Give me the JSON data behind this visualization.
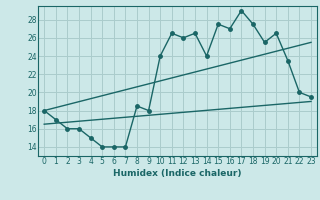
{
  "xlabel": "Humidex (Indice chaleur)",
  "bg_color": "#cce8e8",
  "grid_color": "#aacccc",
  "line_color": "#1a6666",
  "xmin": -0.5,
  "xmax": 23.5,
  "ymin": 13,
  "ymax": 29.5,
  "yticks": [
    14,
    16,
    18,
    20,
    22,
    24,
    26,
    28
  ],
  "xticks": [
    0,
    1,
    2,
    3,
    4,
    5,
    6,
    7,
    8,
    9,
    10,
    11,
    12,
    13,
    14,
    15,
    16,
    17,
    18,
    19,
    20,
    21,
    22,
    23
  ],
  "line1_x": [
    0,
    1,
    2,
    3,
    4,
    5,
    6,
    7,
    8,
    9,
    10,
    11,
    12,
    13,
    14,
    15,
    16,
    17,
    18,
    19,
    20,
    21,
    22,
    23
  ],
  "line1_y": [
    18,
    17,
    16,
    16,
    15,
    14,
    14,
    14,
    18.5,
    18,
    24,
    26.5,
    26,
    26.5,
    24,
    27.5,
    27,
    29,
    27.5,
    25.5,
    26.5,
    23.5,
    20,
    19.5
  ],
  "line2_x": [
    0,
    23
  ],
  "line2_y": [
    18,
    25.5
  ],
  "line3_x": [
    0,
    23
  ],
  "line3_y": [
    16.5,
    19.0
  ],
  "marker_size": 2.5,
  "linewidth": 1.0,
  "tick_fontsize": 5.5,
  "xlabel_fontsize": 6.5
}
